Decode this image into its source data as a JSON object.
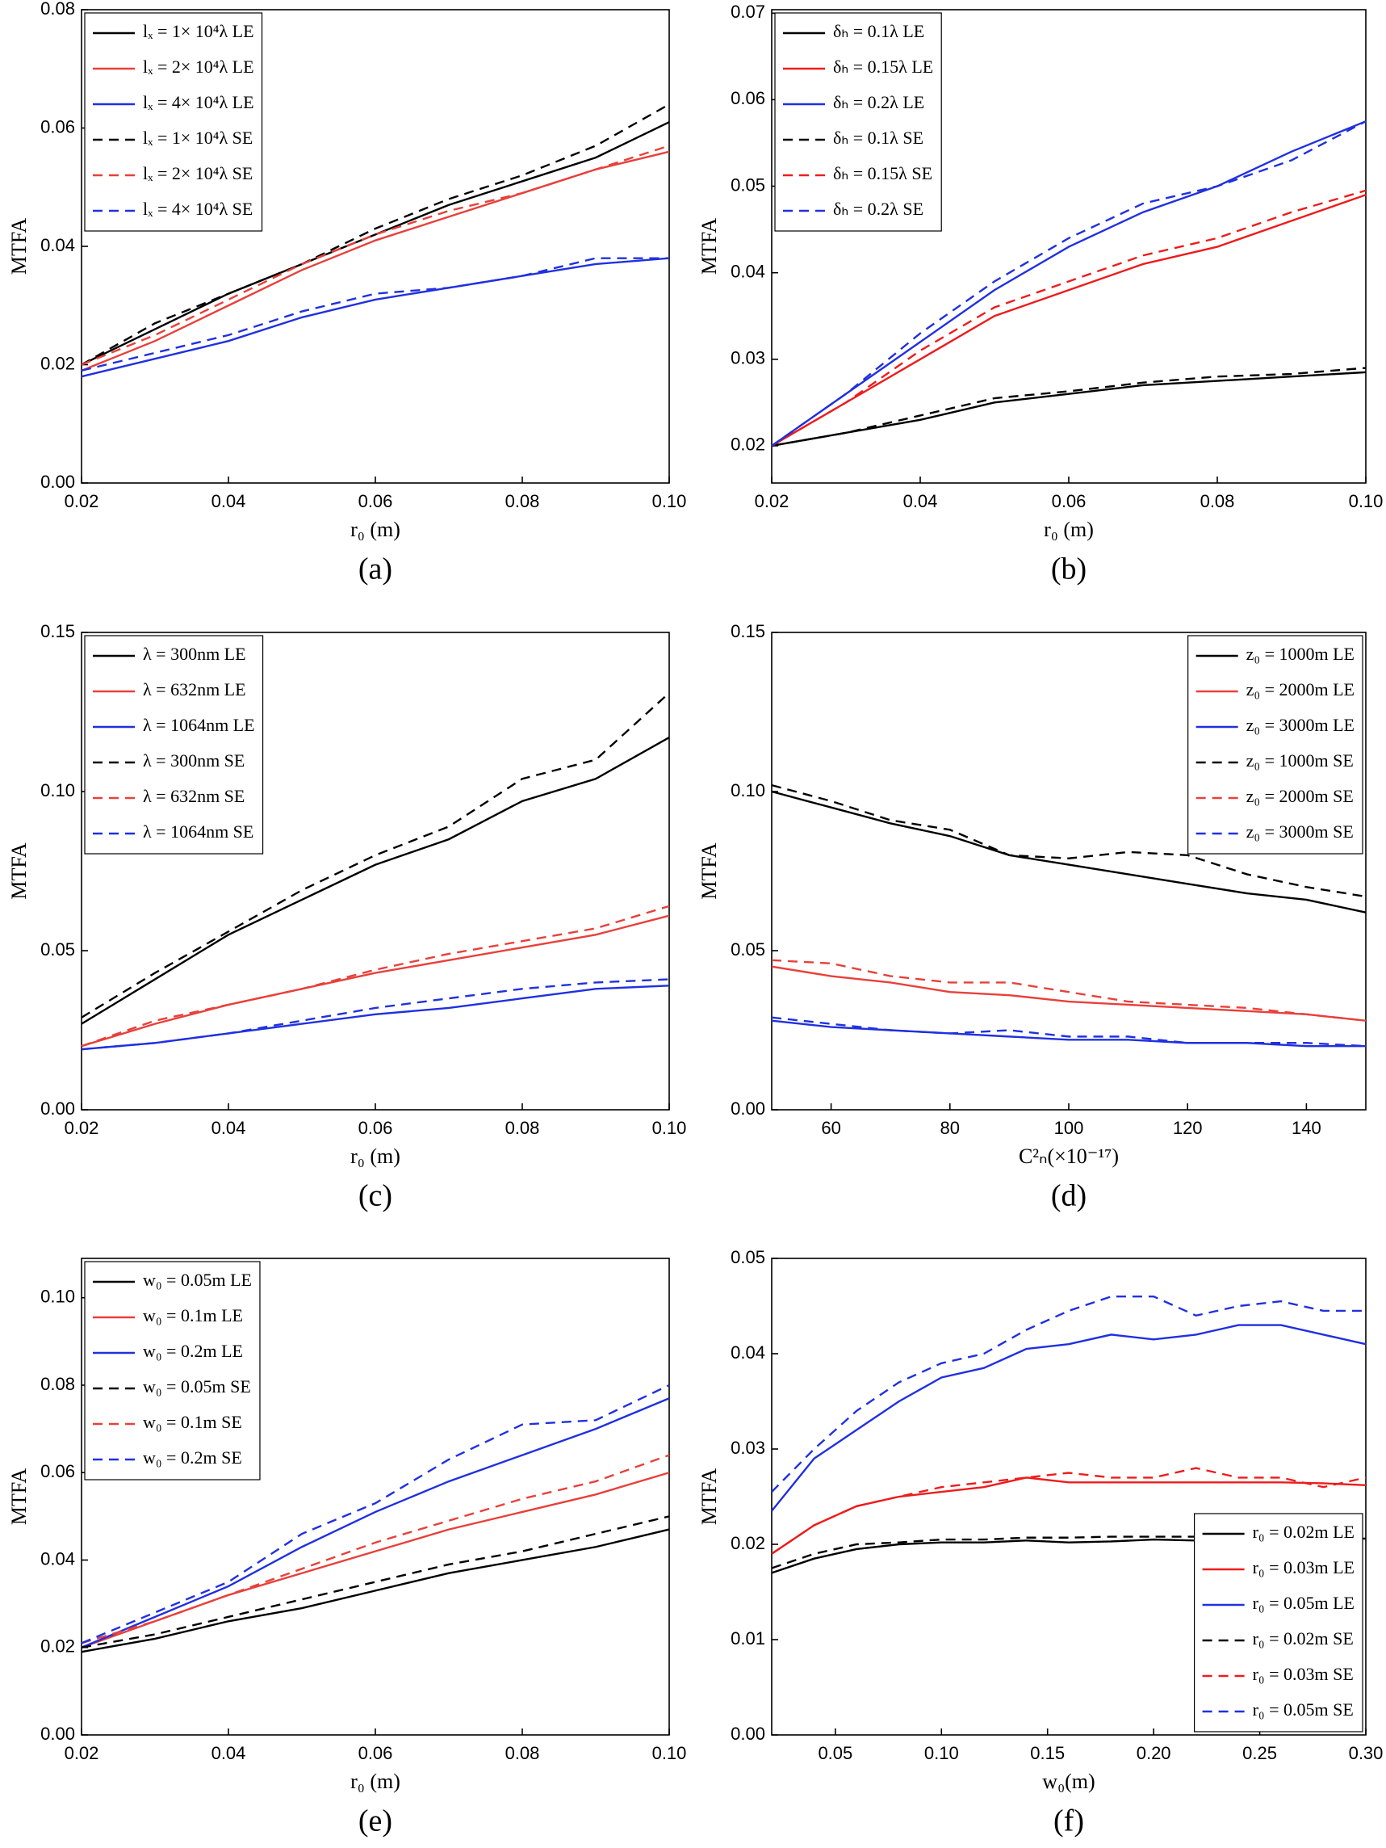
{
  "chart_data": [
    {
      "type": "line",
      "caption": "(a)",
      "xlabel": "r₀ (m)",
      "ylabel": "MTFA",
      "legend": "upper left",
      "x": [
        0.02,
        0.03,
        0.04,
        0.05,
        0.06,
        0.07,
        0.08,
        0.09,
        0.1
      ],
      "xlim": [
        0.02,
        0.1
      ],
      "xticks": [
        0.02,
        0.04,
        0.06,
        0.08,
        {
          "value": 0.1,
          "label": "0.10"
        }
      ],
      "ylim": [
        0,
        0.08
      ],
      "yticks": [
        {
          "value": 0,
          "label": "0.00"
        },
        0.02,
        0.04,
        0.06,
        0.08
      ],
      "series": [
        {
          "name": "lₓ = 1× 10⁴λ LE",
          "color": "#000000",
          "style": "solid",
          "values": [
            0.02,
            0.026,
            0.032,
            0.037,
            0.042,
            0.047,
            0.051,
            0.055,
            0.061
          ]
        },
        {
          "name": "lₓ = 2× 10⁴λ LE",
          "color": "#e8403a",
          "style": "solid",
          "values": [
            0.019,
            0.024,
            0.03,
            0.036,
            0.041,
            0.045,
            0.049,
            0.053,
            0.056
          ]
        },
        {
          "name": "lₓ = 4× 10⁴λ LE",
          "color": "#2030e0",
          "style": "solid",
          "values": [
            0.018,
            0.021,
            0.024,
            0.028,
            0.031,
            0.033,
            0.035,
            0.037,
            0.038
          ]
        },
        {
          "name": "lₓ = 1× 10⁴λ SE",
          "color": "#000000",
          "style": "dashed",
          "values": [
            0.02,
            0.027,
            0.032,
            0.037,
            0.043,
            0.048,
            0.052,
            0.057,
            0.064
          ]
        },
        {
          "name": "lₓ = 2× 10⁴λ SE",
          "color": "#e8403a",
          "style": "dashed",
          "values": [
            0.02,
            0.025,
            0.031,
            0.037,
            0.042,
            0.046,
            0.049,
            0.053,
            0.057
          ]
        },
        {
          "name": "lₓ = 4× 10⁴λ SE",
          "color": "#2030e0",
          "style": "dashed",
          "values": [
            0.019,
            0.022,
            0.025,
            0.029,
            0.032,
            0.033,
            0.035,
            0.038,
            0.038
          ]
        }
      ]
    },
    {
      "type": "line",
      "caption": "(b)",
      "xlabel": "r₀ (m)",
      "ylabel": "MTFA",
      "legend": "upper left",
      "x": [
        0.02,
        0.03,
        0.04,
        0.05,
        0.06,
        0.07,
        0.08,
        0.09,
        0.1
      ],
      "xlim": [
        0.02,
        0.1
      ],
      "xticks": [
        0.02,
        0.04,
        0.06,
        0.08,
        {
          "value": 0.1,
          "label": "0.10"
        }
      ],
      "ylim": [
        0.0157,
        0.0704
      ],
      "yticks": [
        0.02,
        0.03,
        0.04,
        0.05,
        0.06,
        0.07
      ],
      "series": [
        {
          "name": "δₕ = 0.1λ LE",
          "color": "#000000",
          "style": "solid",
          "values": [
            0.02,
            0.0215,
            0.023,
            0.025,
            0.026,
            0.027,
            0.0275,
            0.028,
            0.0285
          ]
        },
        {
          "name": "δₕ = 0.15λ LE",
          "color": "#ee1c1c",
          "style": "solid",
          "values": [
            0.02,
            0.025,
            0.03,
            0.035,
            0.038,
            0.041,
            0.043,
            0.046,
            0.049
          ]
        },
        {
          "name": "δₕ = 0.2λ LE",
          "color": "#2030e0",
          "style": "solid",
          "values": [
            0.02,
            0.026,
            0.032,
            0.038,
            0.043,
            0.047,
            0.05,
            0.054,
            0.0575
          ]
        },
        {
          "name": "δₕ = 0.1λ SE",
          "color": "#000000",
          "style": "dashed",
          "values": [
            0.02,
            0.0215,
            0.0235,
            0.0255,
            0.0263,
            0.0273,
            0.028,
            0.0283,
            0.029
          ]
        },
        {
          "name": "δₕ = 0.15λ SE",
          "color": "#ee1c1c",
          "style": "dashed",
          "values": [
            0.02,
            0.025,
            0.031,
            0.036,
            0.039,
            0.042,
            0.044,
            0.047,
            0.0495
          ]
        },
        {
          "name": "δₕ = 0.2λ SE",
          "color": "#2030e0",
          "style": "dashed",
          "values": [
            0.02,
            0.026,
            0.033,
            0.039,
            0.044,
            0.048,
            0.05,
            0.053,
            0.0575
          ]
        }
      ]
    },
    {
      "type": "line",
      "caption": "(c)",
      "xlabel": "r₀ (m)",
      "ylabel": "MTFA",
      "legend": "upper left",
      "x": [
        0.02,
        0.03,
        0.04,
        0.05,
        0.06,
        0.07,
        0.08,
        0.09,
        0.1
      ],
      "xlim": [
        0.02,
        0.1
      ],
      "xticks": [
        0.02,
        0.04,
        0.06,
        0.08,
        {
          "value": 0.1,
          "label": "0.10"
        }
      ],
      "ylim": [
        0,
        0.15
      ],
      "yticks": [
        {
          "value": 0,
          "label": "0.00"
        },
        0.05,
        {
          "value": 0.1,
          "label": "0.10"
        },
        0.15
      ],
      "series": [
        {
          "name": "λ = 300nm   LE",
          "color": "#000000",
          "style": "solid",
          "values": [
            0.027,
            0.041,
            0.055,
            0.066,
            0.077,
            0.085,
            0.097,
            0.104,
            0.117
          ]
        },
        {
          "name": "λ = 632nm   LE",
          "color": "#e8403a",
          "style": "solid",
          "values": [
            0.02,
            0.027,
            0.033,
            0.038,
            0.043,
            0.047,
            0.051,
            0.055,
            0.061
          ]
        },
        {
          "name": "λ = 1064nm LE",
          "color": "#2030e0",
          "style": "solid",
          "values": [
            0.019,
            0.021,
            0.024,
            0.027,
            0.03,
            0.032,
            0.035,
            0.038,
            0.039
          ]
        },
        {
          "name": "λ = 300nm   SE",
          "color": "#000000",
          "style": "dashed",
          "values": [
            0.029,
            0.043,
            0.056,
            0.069,
            0.08,
            0.089,
            0.104,
            0.11,
            0.131
          ]
        },
        {
          "name": "λ = 632nm   SE",
          "color": "#e8403a",
          "style": "dashed",
          "values": [
            0.02,
            0.028,
            0.033,
            0.038,
            0.044,
            0.049,
            0.053,
            0.057,
            0.064
          ]
        },
        {
          "name": "λ = 1064nm SE",
          "color": "#2030e0",
          "style": "dashed",
          "values": [
            0.019,
            0.021,
            0.024,
            0.028,
            0.032,
            0.035,
            0.038,
            0.04,
            0.041
          ]
        }
      ]
    },
    {
      "type": "line",
      "caption": "(d)",
      "xlabel": "C²ₙ(×10⁻¹⁷)",
      "ylabel": "MTFA",
      "legend": "upper right",
      "x": [
        50,
        60,
        70,
        80,
        90,
        100,
        110,
        120,
        130,
        140,
        150
      ],
      "xlim": [
        50,
        150
      ],
      "xticks": [
        60,
        80,
        100,
        120,
        140
      ],
      "ylim": [
        0,
        0.15
      ],
      "yticks": [
        {
          "value": 0,
          "label": "0.00"
        },
        0.05,
        {
          "value": 0.1,
          "label": "0.10"
        },
        0.15
      ],
      "series": [
        {
          "name": "z₀ = 1000m   LE",
          "color": "#000000",
          "style": "solid",
          "values": [
            0.1,
            0.095,
            0.09,
            0.086,
            0.08,
            0.077,
            0.074,
            0.071,
            0.068,
            0.066,
            0.062
          ]
        },
        {
          "name": "z₀ = 2000m   LE",
          "color": "#e8403a",
          "style": "solid",
          "values": [
            0.045,
            0.042,
            0.04,
            0.037,
            0.036,
            0.034,
            0.033,
            0.032,
            0.031,
            0.03,
            0.028
          ]
        },
        {
          "name": "z₀ = 3000m   LE",
          "color": "#2030e0",
          "style": "solid",
          "values": [
            0.028,
            0.026,
            0.025,
            0.024,
            0.023,
            0.022,
            0.022,
            0.021,
            0.021,
            0.02,
            0.02
          ]
        },
        {
          "name": "z₀ = 1000m   SE",
          "color": "#000000",
          "style": "dashed",
          "values": [
            0.102,
            0.097,
            0.091,
            0.088,
            0.08,
            0.079,
            0.081,
            0.08,
            0.074,
            0.07,
            0.067
          ]
        },
        {
          "name": "z₀ = 2000m   SE",
          "color": "#e8403a",
          "style": "dashed",
          "values": [
            0.047,
            0.046,
            0.042,
            0.04,
            0.04,
            0.037,
            0.034,
            0.033,
            0.032,
            0.03,
            0.028
          ]
        },
        {
          "name": "z₀ = 3000m   SE",
          "color": "#2030e0",
          "style": "dashed",
          "values": [
            0.029,
            0.027,
            0.025,
            0.024,
            0.025,
            0.023,
            0.023,
            0.021,
            0.021,
            0.021,
            0.02
          ]
        }
      ]
    },
    {
      "type": "line",
      "caption": "(e)",
      "xlabel": "r₀ (m)",
      "ylabel": "MTFA",
      "legend": "upper left",
      "x": [
        0.02,
        0.03,
        0.04,
        0.05,
        0.06,
        0.07,
        0.08,
        0.09,
        0.1
      ],
      "xlim": [
        0.02,
        0.1
      ],
      "xticks": [
        0.02,
        0.04,
        0.06,
        0.08,
        {
          "value": 0.1,
          "label": "0.10"
        }
      ],
      "ylim": [
        0,
        0.109
      ],
      "yticks": [
        {
          "value": 0,
          "label": "0.00"
        },
        0.02,
        0.04,
        0.06,
        0.08,
        {
          "value": 0.1,
          "label": "0.10"
        }
      ],
      "series": [
        {
          "name": "w₀ = 0.05m LE",
          "color": "#000000",
          "style": "solid",
          "values": [
            0.019,
            0.022,
            0.026,
            0.029,
            0.033,
            0.037,
            0.04,
            0.043,
            0.047
          ]
        },
        {
          "name": "w₀ = 0.1m   LE",
          "color": "#e8403a",
          "style": "solid",
          "values": [
            0.02,
            0.026,
            0.032,
            0.037,
            0.042,
            0.047,
            0.051,
            0.055,
            0.06
          ]
        },
        {
          "name": "w₀ = 0.2m   LE",
          "color": "#2030e0",
          "style": "solid",
          "values": [
            0.02,
            0.027,
            0.034,
            0.043,
            0.051,
            0.058,
            0.064,
            0.07,
            0.077
          ]
        },
        {
          "name": "w₀ = 0.05m SE",
          "color": "#000000",
          "style": "dashed",
          "values": [
            0.02,
            0.023,
            0.027,
            0.031,
            0.035,
            0.039,
            0.042,
            0.046,
            0.05
          ]
        },
        {
          "name": "w₀ = 0.1m   SE",
          "color": "#e8403a",
          "style": "dashed",
          "values": [
            0.021,
            0.026,
            0.032,
            0.038,
            0.044,
            0.049,
            0.054,
            0.058,
            0.064
          ]
        },
        {
          "name": "w₀ = 0.2m   SE",
          "color": "#2030e0",
          "style": "dashed",
          "values": [
            0.021,
            0.028,
            0.035,
            0.046,
            0.053,
            0.063,
            0.071,
            0.072,
            0.08
          ]
        }
      ]
    },
    {
      "type": "line",
      "caption": "(f)",
      "xlabel": "w₀(m)",
      "ylabel": "MTFA",
      "legend": "lower right",
      "x": [
        0.02,
        0.04,
        0.06,
        0.08,
        0.1,
        0.12,
        0.14,
        0.16,
        0.18,
        0.2,
        0.22,
        0.24,
        0.26,
        0.28,
        0.3
      ],
      "xlim": [
        0.02,
        0.3
      ],
      "xticks": [
        0.05,
        {
          "value": 0.1,
          "label": "0.10"
        },
        0.15,
        {
          "value": 0.2,
          "label": "0.20"
        },
        0.25,
        {
          "value": 0.3,
          "label": "0.30"
        }
      ],
      "ylim": [
        0,
        0.05
      ],
      "yticks": [
        {
          "value": 0,
          "label": "0.00"
        },
        0.01,
        0.02,
        0.03,
        0.04,
        0.05
      ],
      "series": [
        {
          "name": "r₀ = 0.02m LE",
          "color": "#000000",
          "style": "solid",
          "values": [
            0.017,
            0.0185,
            0.0195,
            0.02,
            0.0202,
            0.0202,
            0.0204,
            0.0202,
            0.0203,
            0.0205,
            0.0204,
            0.0205,
            0.0205,
            0.0206,
            0.0206
          ]
        },
        {
          "name": "r₀ = 0.03m LE",
          "color": "#ee1c1c",
          "style": "solid",
          "values": [
            0.019,
            0.022,
            0.024,
            0.025,
            0.0255,
            0.026,
            0.027,
            0.0265,
            0.0265,
            0.0265,
            0.0265,
            0.0265,
            0.0265,
            0.0264,
            0.0262
          ]
        },
        {
          "name": "r₀ = 0.05m LE",
          "color": "#2030e0",
          "style": "solid",
          "values": [
            0.0235,
            0.029,
            0.032,
            0.035,
            0.0375,
            0.0385,
            0.0405,
            0.041,
            0.042,
            0.0415,
            0.042,
            0.043,
            0.043,
            0.042,
            0.041
          ]
        },
        {
          "name": "r₀ = 0.02m SE",
          "color": "#000000",
          "style": "dashed",
          "values": [
            0.0175,
            0.019,
            0.02,
            0.0202,
            0.0205,
            0.0205,
            0.0207,
            0.0207,
            0.0208,
            0.0208,
            0.0208,
            0.021,
            0.021,
            0.0208,
            0.0207
          ]
        },
        {
          "name": "r₀ = 0.03m SE",
          "color": "#ee1c1c",
          "style": "dashed",
          "values": [
            0.019,
            0.022,
            0.024,
            0.025,
            0.026,
            0.0265,
            0.027,
            0.0275,
            0.027,
            0.027,
            0.028,
            0.027,
            0.027,
            0.026,
            0.027
          ]
        },
        {
          "name": "r₀ = 0.05m SE",
          "color": "#2030e0",
          "style": "dashed",
          "values": [
            0.0255,
            0.03,
            0.034,
            0.037,
            0.039,
            0.04,
            0.0425,
            0.0445,
            0.046,
            0.046,
            0.044,
            0.045,
            0.0455,
            0.0445,
            0.0445
          ]
        }
      ]
    }
  ]
}
